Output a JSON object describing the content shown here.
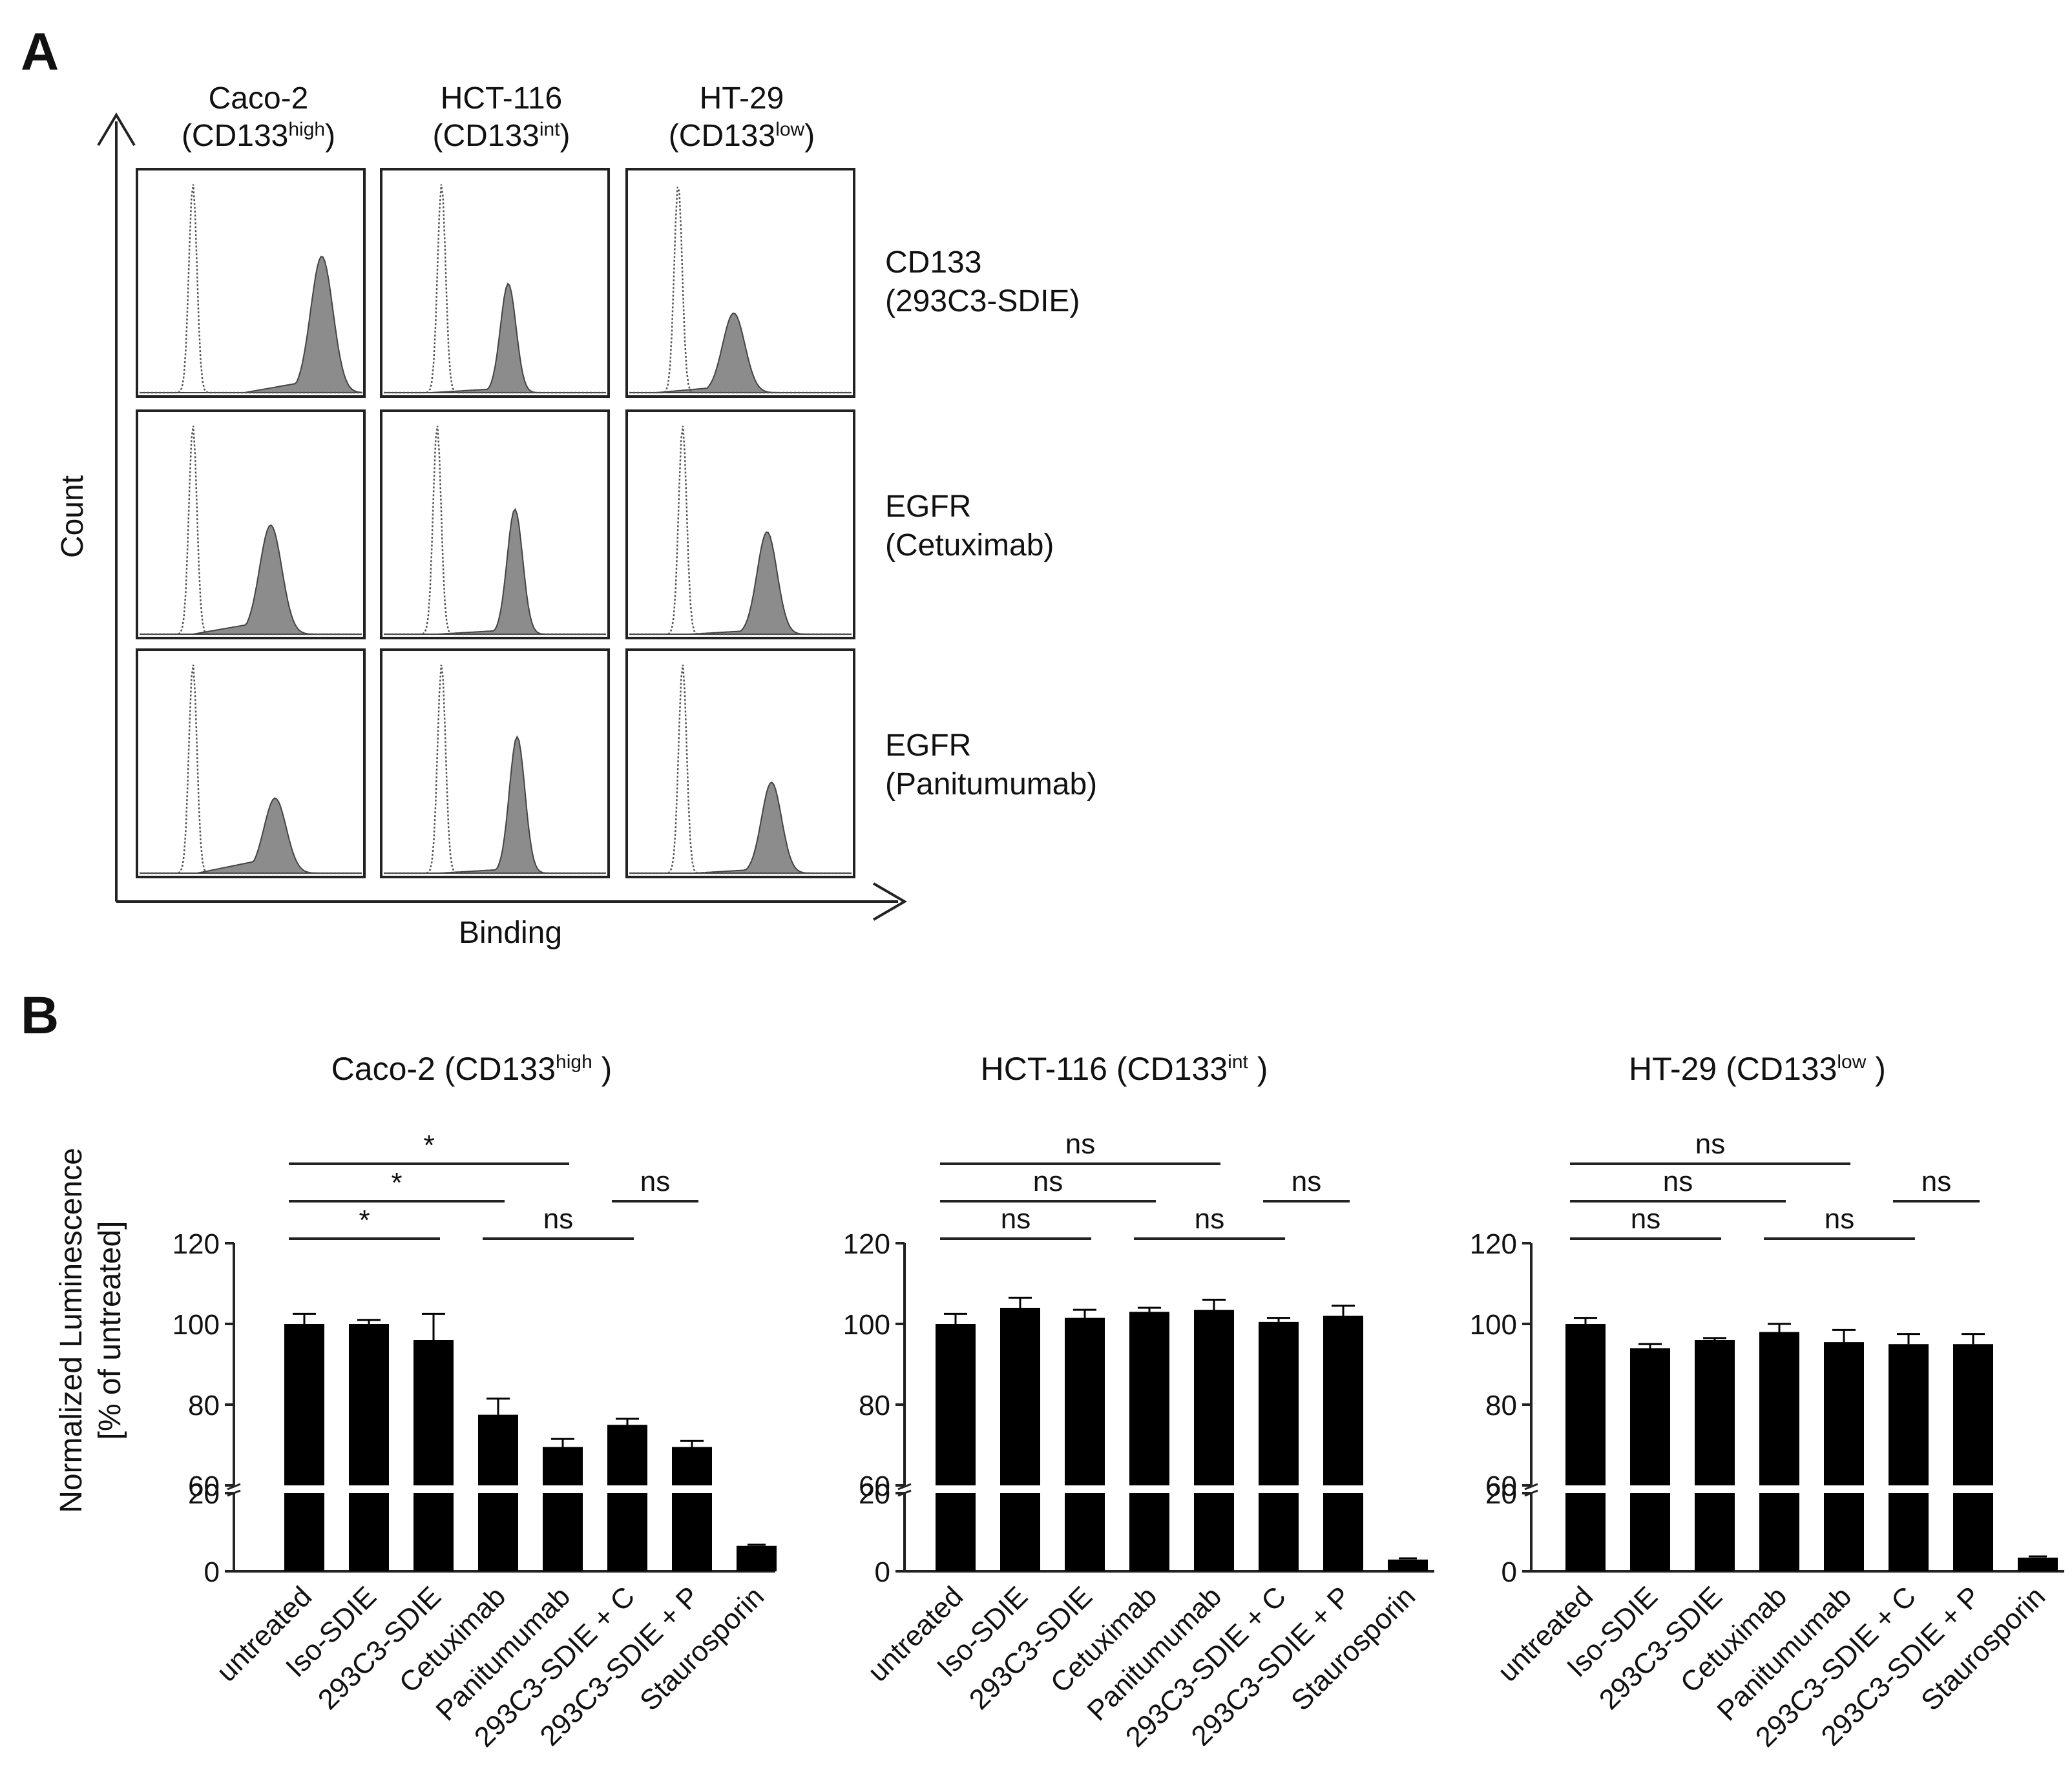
{
  "panel_a": {
    "label": "A",
    "columns": [
      {
        "name": "Caco-2",
        "marker": "high"
      },
      {
        "name": "HCT-116",
        "marker": "int"
      },
      {
        "name": "HT-29",
        "marker": "low"
      }
    ],
    "rows": [
      {
        "line1": "CD133",
        "line2": "(293C3-SDIE)"
      },
      {
        "line1": "EGFR",
        "line2": "(Cetuximab)"
      },
      {
        "line1": "EGFR",
        "line2": "(Panitumumab)"
      }
    ],
    "ylabel": "Count",
    "xlabel": "Binding",
    "colors": {
      "stained_fill": "#8c8c8c",
      "isotype_line": "#555555"
    }
  },
  "panel_b": {
    "label": "B"
  },
  "chart_data": [
    {
      "type": "bar",
      "title_name": "Caco-2",
      "title_marker": "high",
      "ylabel_line1": "Normalized Luminescence",
      "ylabel_line2": "[% of untreated]",
      "categories": [
        "untreated",
        "Iso-SDIE",
        "293C3-SDIE",
        "Cetuximab",
        "Panitumumab",
        "293C3-SDIE + C",
        "293C3-SDIE + P",
        "Staurosporin"
      ],
      "values": [
        100,
        100,
        96,
        77.5,
        69.5,
        75,
        69.5,
        6.5
      ],
      "errors": [
        2.5,
        1,
        6.5,
        4,
        2,
        1.5,
        1.5,
        0.3
      ],
      "y_upper_ticks": [
        "60",
        "80",
        "100",
        "120"
      ],
      "y_lower_ticks": [
        "0",
        "20"
      ],
      "y_broken_axis": {
        "lower": [
          0,
          20
        ],
        "upper": [
          60,
          120
        ]
      },
      "comparisons": [
        {
          "from": 0,
          "to": 2,
          "label": "*",
          "level": 1
        },
        {
          "from": 0,
          "to": 3,
          "label": "*",
          "level": 2
        },
        {
          "from": 0,
          "to": 4,
          "label": "*",
          "level": 3
        },
        {
          "from": 3,
          "to": 5,
          "label": "ns",
          "level": 1
        },
        {
          "from": 5,
          "to": 6,
          "label": "ns",
          "level": 2
        }
      ]
    },
    {
      "type": "bar",
      "title_name": "HCT-116",
      "title_marker": "int",
      "categories": [
        "untreated",
        "Iso-SDIE",
        "293C3-SDIE",
        "Cetuximab",
        "Panitumumab",
        "293C3-SDIE + C",
        "293C3-SDIE + P",
        "Staurosporin"
      ],
      "values": [
        100,
        104,
        101.5,
        103,
        103.5,
        100.5,
        102,
        3
      ],
      "errors": [
        2.5,
        2.5,
        2,
        1,
        2.5,
        1,
        2.5,
        0.3
      ],
      "y_upper_ticks": [
        "60",
        "80",
        "100",
        "120"
      ],
      "y_lower_ticks": [
        "0",
        "20"
      ],
      "y_broken_axis": {
        "lower": [
          0,
          20
        ],
        "upper": [
          60,
          120
        ]
      },
      "comparisons": [
        {
          "from": 0,
          "to": 2,
          "label": "ns",
          "level": 1
        },
        {
          "from": 0,
          "to": 3,
          "label": "ns",
          "level": 2
        },
        {
          "from": 0,
          "to": 4,
          "label": "ns",
          "level": 3
        },
        {
          "from": 3,
          "to": 5,
          "label": "ns",
          "level": 1
        },
        {
          "from": 5,
          "to": 6,
          "label": "ns",
          "level": 2
        }
      ]
    },
    {
      "type": "bar",
      "title_name": "HT-29",
      "title_marker": "low",
      "categories": [
        "untreated",
        "Iso-SDIE",
        "293C3-SDIE",
        "Cetuximab",
        "Panitumumab",
        "293C3-SDIE + C",
        "293C3-SDIE + P",
        "Staurosporin"
      ],
      "values": [
        100,
        94,
        96,
        98,
        95.5,
        95,
        95,
        3.5
      ],
      "errors": [
        1.5,
        1,
        0.5,
        2,
        3,
        2.5,
        2.5,
        0.3
      ],
      "y_upper_ticks": [
        "60",
        "80",
        "100",
        "120"
      ],
      "y_lower_ticks": [
        "0",
        "20"
      ],
      "y_broken_axis": {
        "lower": [
          0,
          20
        ],
        "upper": [
          60,
          120
        ]
      },
      "comparisons": [
        {
          "from": 0,
          "to": 2,
          "label": "ns",
          "level": 1
        },
        {
          "from": 0,
          "to": 3,
          "label": "ns",
          "level": 2
        },
        {
          "from": 0,
          "to": 4,
          "label": "ns",
          "level": 3
        },
        {
          "from": 3,
          "to": 5,
          "label": "ns",
          "level": 1
        },
        {
          "from": 5,
          "to": 6,
          "label": "ns",
          "level": 2
        }
      ]
    }
  ]
}
